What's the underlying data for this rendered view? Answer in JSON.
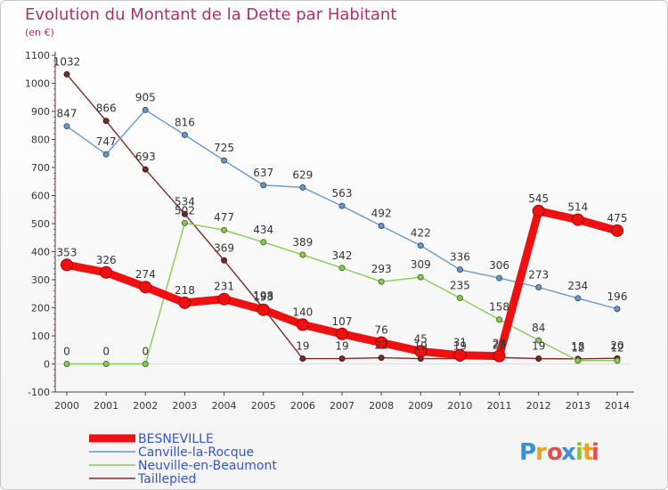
{
  "chart_data": {
    "type": "line",
    "title": "Evolution du Montant de la Dette par Habitant",
    "subtitle": "(en €)",
    "xlabel": "",
    "ylabel": "",
    "ylim": [
      -100,
      1100
    ],
    "y_ticks": [
      -100,
      0,
      100,
      200,
      300,
      400,
      500,
      600,
      700,
      800,
      900,
      1000,
      1100
    ],
    "categories": [
      "2000",
      "2001",
      "2002",
      "2003",
      "2004",
      "2005",
      "2006",
      "2007",
      "2008",
      "2009",
      "2010",
      "2011",
      "2012",
      "2013",
      "2014"
    ],
    "series": [
      {
        "name": "Taillepied",
        "color": "#7a2a2a",
        "values": [
          1032,
          866,
          693,
          534,
          369,
          198,
          19,
          19,
          22,
          19,
          19,
          23,
          19,
          18,
          20
        ],
        "labels": [
          "1032",
          "866",
          "693",
          "534",
          "369",
          "198",
          "19",
          "19",
          "22",
          "19",
          "19",
          "23",
          "19",
          "18",
          "20"
        ]
      },
      {
        "name": "Neuville-en-Beaumont",
        "color": "#88cc55",
        "values": [
          0,
          0,
          0,
          502,
          477,
          434,
          389,
          342,
          293,
          309,
          235,
          158,
          84,
          12,
          12
        ],
        "labels": [
          "0",
          "0",
          "0",
          "502",
          "477",
          "434",
          "389",
          "342",
          "293",
          "309",
          "235",
          "158",
          "84",
          "12",
          "12"
        ]
      },
      {
        "name": "Canville-la-Rocque",
        "color": "#6699cc",
        "values": [
          847,
          747,
          905,
          816,
          725,
          637,
          629,
          563,
          492,
          422,
          336,
          306,
          273,
          234,
          196
        ],
        "labels": [
          "847",
          "747",
          "905",
          "816",
          "725",
          "637",
          "629",
          "563",
          "492",
          "422",
          "336",
          "306",
          "273",
          "234",
          "196"
        ]
      },
      {
        "name": "BESNEVILLE",
        "color": "#ee1111",
        "values": [
          353,
          326,
          274,
          218,
          231,
          193,
          140,
          107,
          76,
          45,
          31,
          28,
          545,
          514,
          475
        ],
        "labels": [
          "353",
          "326",
          "274",
          "218",
          "231",
          "193",
          "140",
          "107",
          "76",
          "45",
          "31",
          "28",
          "545",
          "514",
          "475"
        ]
      }
    ],
    "legend_order": [
      "BESNEVILLE",
      "Canville-la-Rocque",
      "Neuville-en-Beaumont",
      "Taillepied"
    ],
    "legend_position": "bottom-left"
  },
  "brand": {
    "name": "Proxiti",
    "letters": [
      "P",
      "r",
      "o",
      "x",
      "i",
      "t",
      "i"
    ],
    "colors": [
      "#3a8fd8",
      "#f0a020",
      "#e05050",
      "#3a8fd8",
      "#88c040",
      "#f0a020",
      "#e05050"
    ]
  }
}
